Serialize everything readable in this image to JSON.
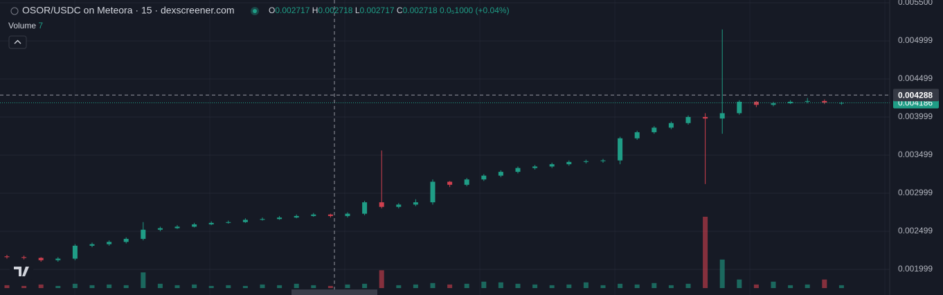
{
  "chart_data": {
    "type": "candlestick",
    "title": "OSOR/USDC on Meteora · 15 · dexscreener.com",
    "ohlc_legend": {
      "o_label": "O",
      "o": "0.002717",
      "h_label": "H",
      "h": "0.002718",
      "l_label": "L",
      "l": "0.002717",
      "c_label": "C",
      "c": "0.002718",
      "change": "0.0₅1000 (+0.04%)"
    },
    "volume_label": "Volume",
    "volume_value": "7",
    "up_color": "#1f9d86",
    "down_color": "#d0404f",
    "open": [
      0.00217,
      0.00216,
      0.00215,
      0.00212,
      0.00214,
      0.00231,
      0.00233,
      0.00236,
      0.0024,
      0.00252,
      0.00254,
      0.00256,
      0.00259,
      0.00261,
      0.00262,
      0.00265,
      0.00266,
      0.00268,
      0.0027,
      0.00272,
      0.0027,
      0.00273,
      0.00288,
      0.00282,
      0.00285,
      0.00288,
      0.00315,
      0.00311,
      0.00318,
      0.00323,
      0.00328,
      0.00333,
      0.00335,
      0.00338,
      0.00341,
      0.00342,
      0.00343,
      0.00372,
      0.0038,
      0.00386,
      0.00392,
      0.004,
      0.00398,
      0.00405,
      0.0042,
      0.00416,
      0.00418,
      0.0042,
      0.00421,
      0.00418
    ],
    "high": [
      0.00219,
      0.00218,
      0.00216,
      0.00216,
      0.00233,
      0.00235,
      0.00238,
      0.00242,
      0.00262,
      0.00256,
      0.00258,
      0.00261,
      0.00263,
      0.00264,
      0.00267,
      0.00268,
      0.0027,
      0.00272,
      0.00274,
      0.00273,
      0.00275,
      0.0029,
      0.00356,
      0.00287,
      0.00292,
      0.00318,
      0.00316,
      0.0032,
      0.00325,
      0.0033,
      0.00335,
      0.00337,
      0.0034,
      0.00343,
      0.00344,
      0.00345,
      0.00374,
      0.00382,
      0.00388,
      0.00394,
      0.00402,
      0.00405,
      0.00515,
      0.00422,
      0.00421,
      0.0042,
      0.00422,
      0.00425,
      0.00423,
      0.0042
    ],
    "low": [
      0.00214,
      0.00213,
      0.0021,
      0.0021,
      0.00212,
      0.00229,
      0.00231,
      0.00234,
      0.00238,
      0.0025,
      0.00253,
      0.00255,
      0.00258,
      0.0026,
      0.00261,
      0.00264,
      0.00265,
      0.00267,
      0.00269,
      0.00268,
      0.00268,
      0.00271,
      0.0028,
      0.0028,
      0.00283,
      0.00285,
      0.00308,
      0.00309,
      0.00316,
      0.00321,
      0.00326,
      0.00331,
      0.00333,
      0.00336,
      0.00339,
      0.0034,
      0.00338,
      0.0037,
      0.00378,
      0.00384,
      0.0039,
      0.00312,
      0.00378,
      0.00403,
      0.00413,
      0.00414,
      0.00417,
      0.00418,
      0.00417,
      0.00416
    ],
    "close": [
      0.00216,
      0.00215,
      0.00212,
      0.00214,
      0.00231,
      0.00233,
      0.00236,
      0.0024,
      0.00252,
      0.00254,
      0.00256,
      0.00259,
      0.00261,
      0.00262,
      0.00265,
      0.00266,
      0.00268,
      0.0027,
      0.00272,
      0.0027,
      0.00273,
      0.00288,
      0.00282,
      0.00285,
      0.00288,
      0.00315,
      0.00311,
      0.00318,
      0.00323,
      0.00328,
      0.00333,
      0.00335,
      0.00338,
      0.00341,
      0.00342,
      0.00343,
      0.00372,
      0.0038,
      0.00386,
      0.00392,
      0.004,
      0.00398,
      0.00405,
      0.0042,
      0.00416,
      0.00418,
      0.0042,
      0.00421,
      0.00419,
      0.004186
    ],
    "volume": [
      4,
      3,
      5,
      3,
      6,
      4,
      5,
      4,
      22,
      6,
      4,
      5,
      3,
      4,
      3,
      5,
      4,
      6,
      4,
      3,
      5,
      6,
      25,
      4,
      5,
      7,
      5,
      6,
      9,
      8,
      6,
      5,
      4,
      5,
      8,
      4,
      6,
      5,
      7,
      4,
      6,
      100,
      40,
      12,
      5,
      9,
      4,
      5,
      12,
      4
    ],
    "vlim": [
      0,
      100
    ],
    "ylim": [
      0.001663,
      0.005536
    ],
    "yticks": [
      0.001999,
      0.002499,
      0.002999,
      0.003499,
      0.003999,
      0.004499,
      0.004999,
      {
        "value": 0.0055,
        "label": "0.005500"
      }
    ],
    "crosshair_price": 0.004288,
    "last_price": 0.004186,
    "grid": true
  }
}
